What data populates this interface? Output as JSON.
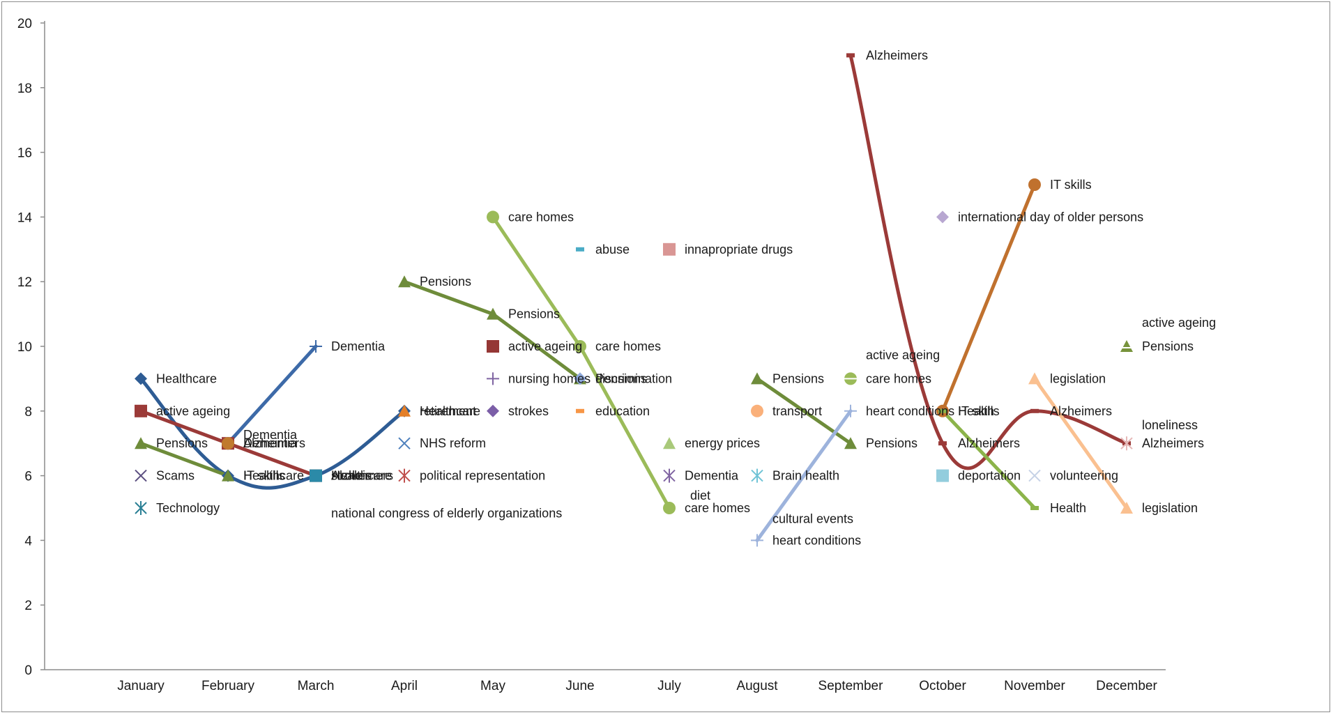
{
  "chart_data": {
    "type": "line",
    "title": "",
    "xlabel": "",
    "ylabel": "",
    "ylim": [
      0,
      20
    ],
    "y_ticks": [
      "0",
      "2",
      "4",
      "6",
      "8",
      "10",
      "12",
      "14",
      "16",
      "18",
      "20"
    ],
    "categories": [
      "January",
      "February",
      "March",
      "April",
      "May",
      "June",
      "July",
      "August",
      "September",
      "October",
      "November",
      "December"
    ],
    "grid": false,
    "legend": "none",
    "series": [
      {
        "color": "#2e5c94",
        "marker": "diamond",
        "smooth": true,
        "points": [
          {
            "x": "January",
            "y": 9,
            "label": "Healthcare"
          },
          {
            "x": "February",
            "y": 6,
            "label": "Healthcare"
          },
          {
            "x": "March",
            "y": 6,
            "label": "Healthcare"
          },
          {
            "x": "April",
            "y": 8,
            "label": "Healthcare"
          }
        ]
      },
      {
        "color": "#9b3a38",
        "marker": "square",
        "smooth": false,
        "points": [
          {
            "x": "January",
            "y": 8,
            "label": "active ageing"
          },
          {
            "x": "February",
            "y": 7,
            "label": "Alzheimers"
          },
          {
            "x": "March",
            "y": 6,
            "label": "Alzheimers"
          }
        ]
      },
      {
        "color": "#6e8c3a",
        "marker": "triangle",
        "smooth": false,
        "points": [
          {
            "x": "January",
            "y": 7,
            "label": "Pensions"
          },
          {
            "x": "February",
            "y": 6,
            "label": "IT skills"
          }
        ]
      },
      {
        "color": "#5b4e80",
        "marker": "x",
        "smooth": false,
        "points": [
          {
            "x": "January",
            "y": 6,
            "label": "Scams"
          }
        ]
      },
      {
        "color": "#2b8095",
        "marker": "asterisk",
        "smooth": false,
        "points": [
          {
            "x": "January",
            "y": 5,
            "label": "Technology"
          }
        ]
      },
      {
        "color": "#3d6aa8",
        "marker": "plus",
        "smooth": false,
        "points": [
          {
            "x": "February",
            "y": 7,
            "label": "Dementia"
          },
          {
            "x": "March",
            "y": 10,
            "label": "Dementia"
          }
        ]
      },
      {
        "color": "#c07a2e",
        "marker": "circle",
        "smooth": false,
        "points": [
          {
            "x": "February",
            "y": 7,
            "label": ""
          }
        ]
      },
      {
        "color": "#2b8aa8",
        "marker": "square",
        "smooth": false,
        "points": [
          {
            "x": "March",
            "y": 6,
            "label": "strokes"
          }
        ]
      },
      {
        "color": "#6e8c3a",
        "marker": "triangle",
        "smooth": false,
        "points": [
          {
            "x": "April",
            "y": 12,
            "label": "Pensions"
          },
          {
            "x": "May",
            "y": 11,
            "label": "Pensions"
          },
          {
            "x": "June",
            "y": 9,
            "label": "Pensions"
          }
        ]
      },
      {
        "color": "#e47f28",
        "marker": "triangle",
        "smooth": false,
        "points": [
          {
            "x": "April",
            "y": 8,
            "label": "retirement"
          }
        ]
      },
      {
        "color": "#4f81bd",
        "marker": "x",
        "smooth": false,
        "points": [
          {
            "x": "April",
            "y": 7,
            "label": "NHS reform"
          }
        ]
      },
      {
        "color": "#c0504d",
        "marker": "asterisk",
        "smooth": false,
        "points": [
          {
            "x": "April",
            "y": 6,
            "label": "political representation"
          }
        ]
      },
      {
        "color": "#9bbb59",
        "marker": "circle",
        "smooth": false,
        "points": [
          {
            "x": "May",
            "y": 14,
            "label": "care homes"
          },
          {
            "x": "June",
            "y": 10,
            "label": "care homes"
          },
          {
            "x": "July",
            "y": 5,
            "label": "care homes"
          }
        ]
      },
      {
        "color": "#953735",
        "marker": "square",
        "smooth": false,
        "points": [
          {
            "x": "May",
            "y": 10,
            "label": "active ageing"
          }
        ]
      },
      {
        "color": "#7f64a2",
        "marker": "plus",
        "smooth": false,
        "points": [
          {
            "x": "May",
            "y": 9,
            "label": "nursing homes"
          }
        ]
      },
      {
        "color": "#7b5ea7",
        "marker": "diamond",
        "smooth": false,
        "points": [
          {
            "x": "May",
            "y": 8,
            "label": "strokes"
          }
        ]
      },
      {
        "color": "#4bacc6",
        "marker": "dash",
        "smooth": false,
        "points": [
          {
            "x": "June",
            "y": 13,
            "label": "abuse"
          }
        ]
      },
      {
        "color": "#8ea9db",
        "marker": "diamond",
        "smooth": false,
        "points": [
          {
            "x": "June",
            "y": 9,
            "label": "discrimination"
          }
        ]
      },
      {
        "color": "#f79646",
        "marker": "dash",
        "smooth": false,
        "points": [
          {
            "x": "June",
            "y": 8,
            "label": "education"
          }
        ]
      },
      {
        "color": "#d99694",
        "marker": "square",
        "smooth": false,
        "points": [
          {
            "x": "July",
            "y": 13,
            "label": "innapropriate drugs"
          }
        ]
      },
      {
        "color": "#a9c97a",
        "marker": "triangle",
        "smooth": false,
        "points": [
          {
            "x": "July",
            "y": 7,
            "label": "energy prices"
          }
        ]
      },
      {
        "color": "#8064a2",
        "marker": "asterisk",
        "smooth": false,
        "points": [
          {
            "x": "July",
            "y": 6,
            "label": "Dementia"
          }
        ]
      },
      {
        "color": "#6e8c3a",
        "marker": "triangle",
        "smooth": false,
        "points": [
          {
            "x": "August",
            "y": 9,
            "label": "Pensions"
          },
          {
            "x": "September",
            "y": 7,
            "label": "Pensions"
          }
        ]
      },
      {
        "color": "#fab07a",
        "marker": "circle",
        "smooth": false,
        "points": [
          {
            "x": "August",
            "y": 8,
            "label": "transport"
          }
        ]
      },
      {
        "color": "#6fc3d6",
        "marker": "asterisk",
        "smooth": false,
        "points": [
          {
            "x": "August",
            "y": 6,
            "label": "Brain health"
          }
        ]
      },
      {
        "color": "#9db3dc",
        "marker": "plus",
        "smooth": false,
        "points": [
          {
            "x": "August",
            "y": 4,
            "label": "heart conditions"
          },
          {
            "x": "September",
            "y": 8,
            "label": "heart conditions"
          }
        ]
      },
      {
        "color": "#9b3a38",
        "marker": "dash",
        "smooth": true,
        "points": [
          {
            "x": "September",
            "y": 19,
            "label": "Alzheimers"
          },
          {
            "x": "October",
            "y": 7,
            "label": "Alzheimers"
          },
          {
            "x": "November",
            "y": 8,
            "label": "Alzheimers"
          },
          {
            "x": "December",
            "y": 7,
            "label": "Alzheimers"
          }
        ]
      },
      {
        "color": "#9bbb59",
        "marker": "circle-dash",
        "smooth": false,
        "points": [
          {
            "x": "September",
            "y": 9,
            "label": "care homes"
          }
        ]
      },
      {
        "color": "#b8a7d1",
        "marker": "diamond",
        "smooth": false,
        "points": [
          {
            "x": "October",
            "y": 14,
            "label": "international day of older persons"
          }
        ]
      },
      {
        "color": "#c0712e",
        "marker": "circle",
        "smooth": false,
        "points": [
          {
            "x": "October",
            "y": 8,
            "label": "Health"
          },
          {
            "x": "November",
            "y": 15,
            "label": "IT skills"
          }
        ]
      },
      {
        "color": "#8cb44a",
        "marker": "dash",
        "smooth": false,
        "points": [
          {
            "x": "October",
            "y": 8,
            "label": "IT skills"
          },
          {
            "x": "November",
            "y": 5,
            "label": "Health"
          }
        ]
      },
      {
        "color": "#93cddd",
        "marker": "square",
        "smooth": false,
        "points": [
          {
            "x": "October",
            "y": 6,
            "label": "deportation"
          }
        ]
      },
      {
        "color": "#fac090",
        "marker": "triangle",
        "smooth": false,
        "points": [
          {
            "x": "November",
            "y": 9,
            "label": "legislation"
          },
          {
            "x": "December",
            "y": 5,
            "label": "legislation"
          }
        ]
      },
      {
        "color": "#c6d2e6",
        "marker": "x",
        "smooth": false,
        "points": [
          {
            "x": "November",
            "y": 6,
            "label": "volunteering"
          }
        ]
      },
      {
        "color": "#77933c",
        "marker": "triangle-dash",
        "smooth": false,
        "points": [
          {
            "x": "December",
            "y": 10,
            "label": "Pensions"
          }
        ]
      },
      {
        "color": "#e6b9b8",
        "marker": "asterisk",
        "smooth": false,
        "points": [
          {
            "x": "December",
            "y": 7,
            "label": ""
          }
        ]
      }
    ],
    "annotations": [
      {
        "x": "February",
        "y": 7,
        "text": "Dementia"
      },
      {
        "x": "March",
        "y": 6,
        "text": "national congress of elderly organizations"
      },
      {
        "x": "July",
        "y": 5,
        "text": "diet"
      },
      {
        "x": "August",
        "y": 4,
        "text": "cultural events"
      },
      {
        "x": "September",
        "y": 9,
        "text": "active ageing"
      },
      {
        "x": "December",
        "y": 10,
        "text": "active ageing"
      },
      {
        "x": "December",
        "y": 7,
        "text": "loneliness"
      }
    ]
  }
}
